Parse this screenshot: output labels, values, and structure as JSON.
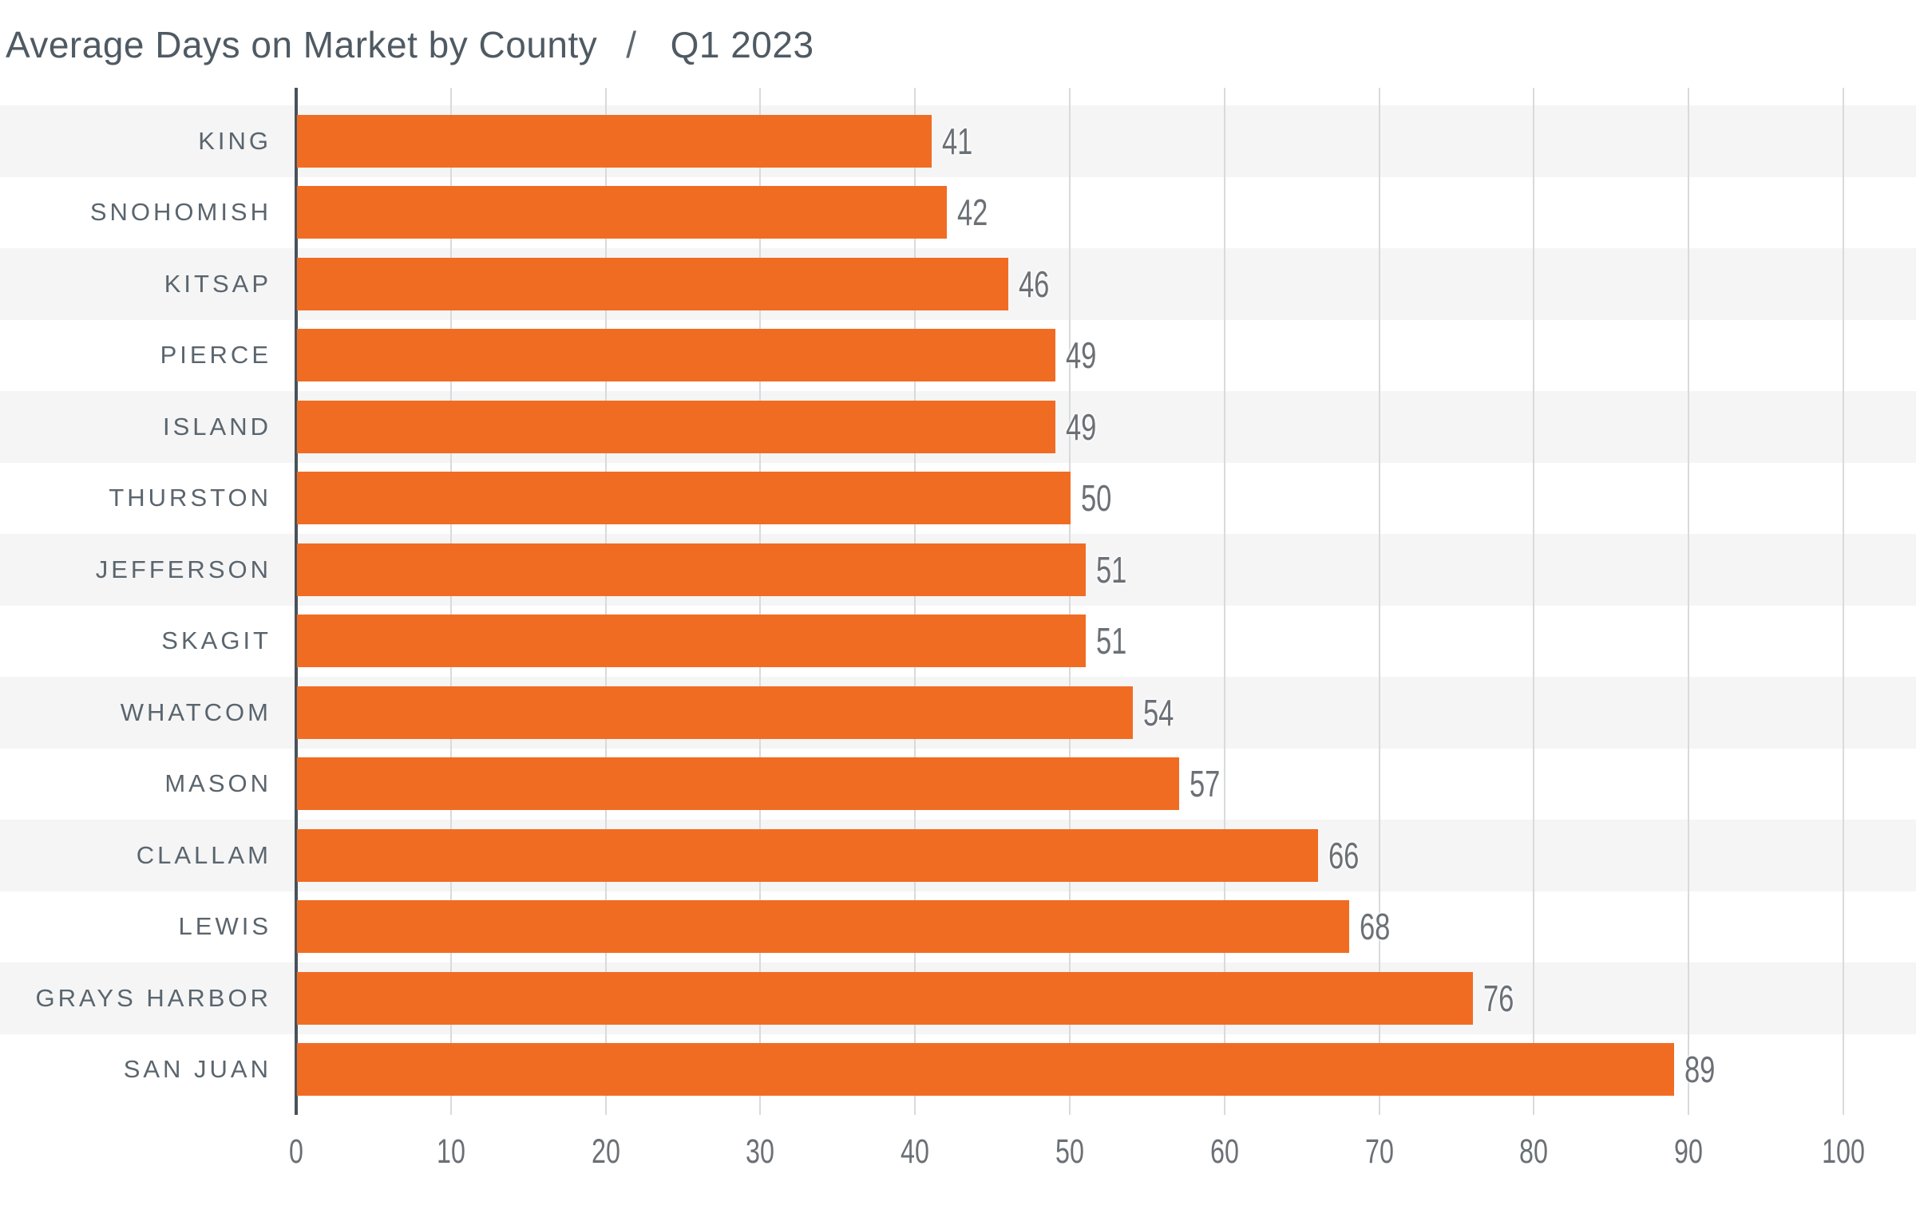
{
  "title": {
    "main": "Average Days on Market by County",
    "separator": "/",
    "period": "Q1 2023"
  },
  "chart_data": {
    "type": "bar",
    "orientation": "horizontal",
    "title": "Average Days on Market by County",
    "subtitle": "Q1 2023",
    "categories": [
      "KING",
      "SNOHOMISH",
      "KITSAP",
      "PIERCE",
      "ISLAND",
      "THURSTON",
      "JEFFERSON",
      "SKAGIT",
      "WHATCOM",
      "MASON",
      "CLALLAM",
      "LEWIS",
      "GRAYS HARBOR",
      "SAN JUAN"
    ],
    "values": [
      41,
      42,
      46,
      49,
      49,
      50,
      51,
      51,
      54,
      57,
      66,
      68,
      76,
      89
    ],
    "value_labels": [
      "41",
      "42",
      "46",
      "49",
      "49",
      "50",
      "51",
      "51",
      "54",
      "57",
      "66",
      "68",
      "76",
      "89"
    ],
    "xlabel": "",
    "ylabel": "",
    "xlim": [
      0,
      100
    ],
    "xticks": [
      0,
      10,
      20,
      30,
      40,
      50,
      60,
      70,
      80,
      90,
      100
    ],
    "xtick_labels": [
      "0",
      "10",
      "20",
      "30",
      "40",
      "50",
      "60",
      "70",
      "80",
      "90",
      "100"
    ],
    "grid": true,
    "legend": false,
    "row_shading": "alternating, first row shaded",
    "colors": {
      "bar": "#f16c23",
      "stripe": "#f5f5f5",
      "gridline": "#d8dadb",
      "axis_line": "#49525a",
      "title_text": "#4f5a63",
      "category_text": "#5a656e",
      "value_text": "#6a7076"
    }
  }
}
